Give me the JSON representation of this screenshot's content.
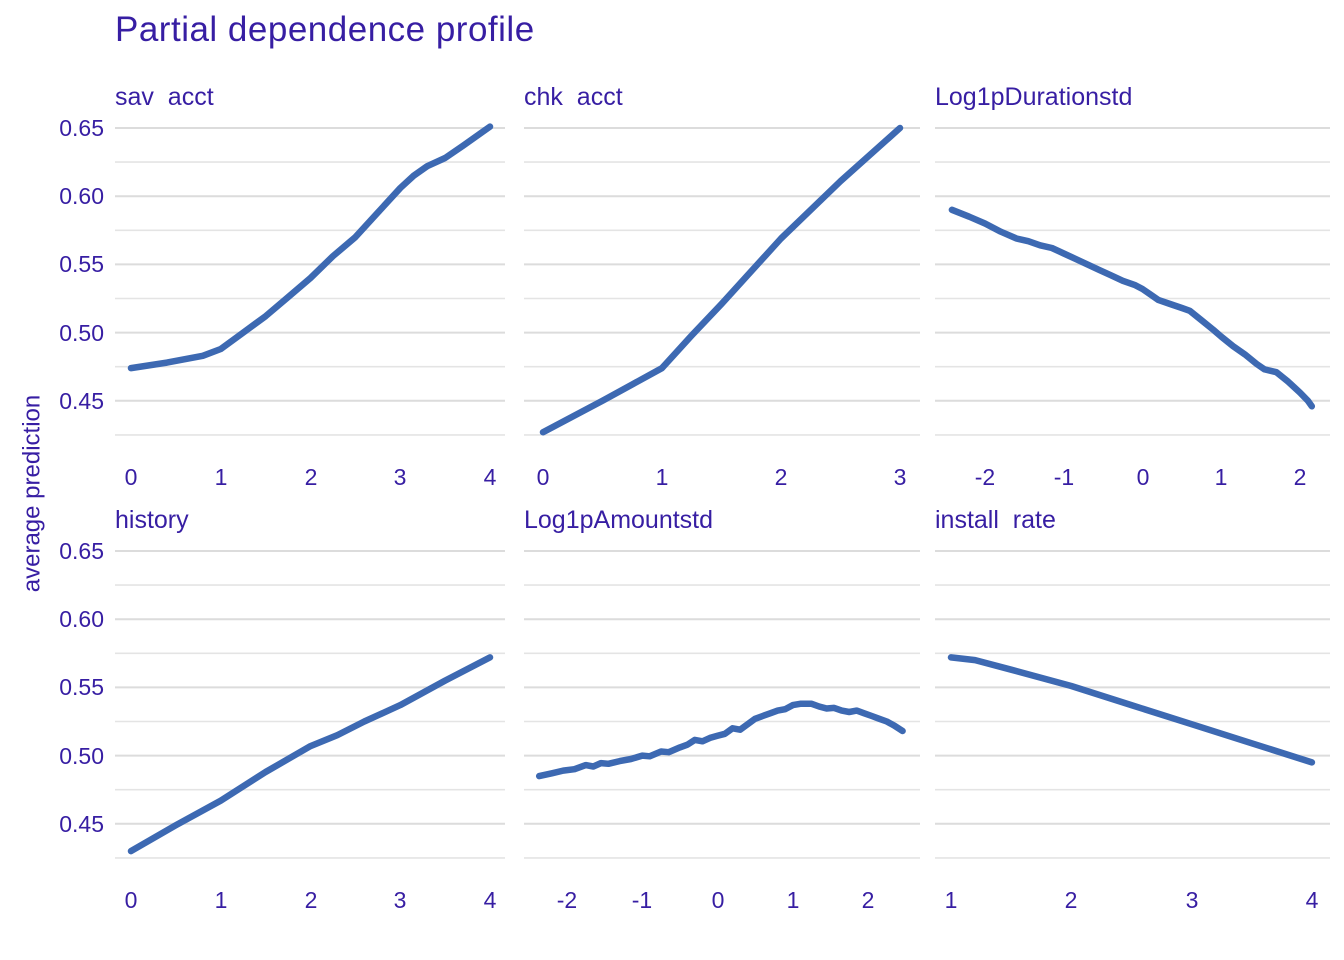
{
  "title": "Partial dependence profile",
  "colors": {
    "text": "#371EA3",
    "line": "#3D69B2",
    "grid_major": "#DCDCDC",
    "grid_minor": "#E4E4E4",
    "background": "#FFFFFF"
  },
  "y_axis": {
    "label": "average prediction",
    "tick_labels": [
      "0.65",
      "0.60",
      "0.55",
      "0.50",
      "0.45"
    ],
    "tick_values": [
      0.65,
      0.6,
      0.55,
      0.5,
      0.45
    ],
    "range": [
      0.425,
      0.655
    ],
    "gridline_values": [
      0.425,
      0.45,
      0.475,
      0.5,
      0.525,
      0.55,
      0.575,
      0.6,
      0.625,
      0.65
    ]
  },
  "chart_data": [
    {
      "type": "line",
      "title": "sav  acct",
      "x_tick_values": [
        0,
        1,
        2,
        3,
        4
      ],
      "x_tick_labels": [
        "0",
        "1",
        "2",
        "3",
        "4"
      ],
      "points": [
        [
          0,
          0.474
        ],
        [
          0.4,
          0.478
        ],
        [
          0.8,
          0.483
        ],
        [
          1,
          0.488
        ],
        [
          1.25,
          0.5
        ],
        [
          1.5,
          0.512
        ],
        [
          1.75,
          0.526
        ],
        [
          2,
          0.54
        ],
        [
          2.25,
          0.556
        ],
        [
          2.5,
          0.57
        ],
        [
          2.75,
          0.588
        ],
        [
          3,
          0.606
        ],
        [
          3.15,
          0.615
        ],
        [
          3.3,
          0.622
        ],
        [
          3.5,
          0.628
        ],
        [
          3.7,
          0.637
        ],
        [
          4,
          0.651
        ]
      ]
    },
    {
      "type": "line",
      "title": "chk  acct",
      "x_tick_values": [
        0,
        1,
        2,
        3
      ],
      "x_tick_labels": [
        "0",
        "1",
        "2",
        "3"
      ],
      "points": [
        [
          0,
          0.427
        ],
        [
          0.5,
          0.45
        ],
        [
          1,
          0.474
        ],
        [
          1.25,
          0.498
        ],
        [
          1.5,
          0.521
        ],
        [
          2,
          0.569
        ],
        [
          2.5,
          0.611
        ],
        [
          3,
          0.65
        ]
      ]
    },
    {
      "type": "line",
      "title": "Log1pDurationstd",
      "x_tick_values": [
        -2,
        -1,
        0,
        1,
        2
      ],
      "x_tick_labels": [
        "-2",
        "-1",
        "0",
        "1",
        "2"
      ],
      "points": [
        [
          -2.42,
          0.59
        ],
        [
          -2.2,
          0.585
        ],
        [
          -2.0,
          0.58
        ],
        [
          -1.8,
          0.574
        ],
        [
          -1.6,
          0.569
        ],
        [
          -1.45,
          0.567
        ],
        [
          -1.3,
          0.564
        ],
        [
          -1.15,
          0.562
        ],
        [
          -1.0,
          0.558
        ],
        [
          -0.85,
          0.554
        ],
        [
          -0.7,
          0.55
        ],
        [
          -0.55,
          0.546
        ],
        [
          -0.4,
          0.542
        ],
        [
          -0.25,
          0.538
        ],
        [
          -0.1,
          0.535
        ],
        [
          0,
          0.532
        ],
        [
          0.1,
          0.528
        ],
        [
          0.2,
          0.524
        ],
        [
          0.35,
          0.521
        ],
        [
          0.5,
          0.518
        ],
        [
          0.6,
          0.516
        ],
        [
          0.75,
          0.509
        ],
        [
          0.9,
          0.502
        ],
        [
          1.0,
          0.497
        ],
        [
          1.15,
          0.49
        ],
        [
          1.3,
          0.484
        ],
        [
          1.45,
          0.477
        ],
        [
          1.55,
          0.473
        ],
        [
          1.7,
          0.471
        ],
        [
          1.85,
          0.464
        ],
        [
          2.0,
          0.456
        ],
        [
          2.1,
          0.45
        ],
        [
          2.15,
          0.446
        ]
      ]
    },
    {
      "type": "line",
      "title": "history",
      "x_tick_values": [
        0,
        1,
        2,
        3,
        4
      ],
      "x_tick_labels": [
        "0",
        "1",
        "2",
        "3",
        "4"
      ],
      "points": [
        [
          0,
          0.43
        ],
        [
          0.5,
          0.449
        ],
        [
          1,
          0.467
        ],
        [
          1.5,
          0.488
        ],
        [
          2,
          0.507
        ],
        [
          2.3,
          0.515
        ],
        [
          2.6,
          0.525
        ],
        [
          3,
          0.537
        ],
        [
          3.5,
          0.555
        ],
        [
          4,
          0.572
        ]
      ]
    },
    {
      "type": "line",
      "title": "Log1pAmountstd",
      "x_tick_values": [
        -2,
        -1,
        0,
        1,
        2
      ],
      "x_tick_labels": [
        "-2",
        "-1",
        "0",
        "1",
        "2"
      ],
      "points": [
        [
          -2.37,
          0.485
        ],
        [
          -2.2,
          0.487
        ],
        [
          -2.05,
          0.489
        ],
        [
          -1.9,
          0.49
        ],
        [
          -1.75,
          0.493
        ],
        [
          -1.65,
          0.492
        ],
        [
          -1.55,
          0.4945
        ],
        [
          -1.45,
          0.494
        ],
        [
          -1.3,
          0.496
        ],
        [
          -1.15,
          0.4975
        ],
        [
          -1.0,
          0.5
        ],
        [
          -0.9,
          0.4995
        ],
        [
          -0.75,
          0.503
        ],
        [
          -0.65,
          0.5025
        ],
        [
          -0.5,
          0.506
        ],
        [
          -0.4,
          0.508
        ],
        [
          -0.3,
          0.5115
        ],
        [
          -0.2,
          0.5105
        ],
        [
          -0.1,
          0.513
        ],
        [
          0,
          0.5145
        ],
        [
          0.1,
          0.516
        ],
        [
          0.2,
          0.52
        ],
        [
          0.3,
          0.519
        ],
        [
          0.4,
          0.523
        ],
        [
          0.5,
          0.527
        ],
        [
          0.6,
          0.529
        ],
        [
          0.7,
          0.531
        ],
        [
          0.8,
          0.533
        ],
        [
          0.9,
          0.534
        ],
        [
          1.0,
          0.537
        ],
        [
          1.1,
          0.538
        ],
        [
          1.25,
          0.538
        ],
        [
          1.35,
          0.536
        ],
        [
          1.45,
          0.5345
        ],
        [
          1.55,
          0.535
        ],
        [
          1.65,
          0.533
        ],
        [
          1.75,
          0.532
        ],
        [
          1.85,
          0.533
        ],
        [
          1.95,
          0.531
        ],
        [
          2.05,
          0.529
        ],
        [
          2.15,
          0.527
        ],
        [
          2.25,
          0.525
        ],
        [
          2.35,
          0.522
        ],
        [
          2.46,
          0.518
        ]
      ]
    },
    {
      "type": "line",
      "title": "install  rate",
      "x_tick_values": [
        1,
        2,
        3,
        4
      ],
      "x_tick_labels": [
        "1",
        "2",
        "3",
        "4"
      ],
      "points": [
        [
          1,
          0.572
        ],
        [
          1.2,
          0.57
        ],
        [
          1.5,
          0.563
        ],
        [
          2,
          0.551
        ],
        [
          2.5,
          0.537
        ],
        [
          3,
          0.523
        ],
        [
          3.5,
          0.509
        ],
        [
          4,
          0.495
        ]
      ]
    }
  ]
}
